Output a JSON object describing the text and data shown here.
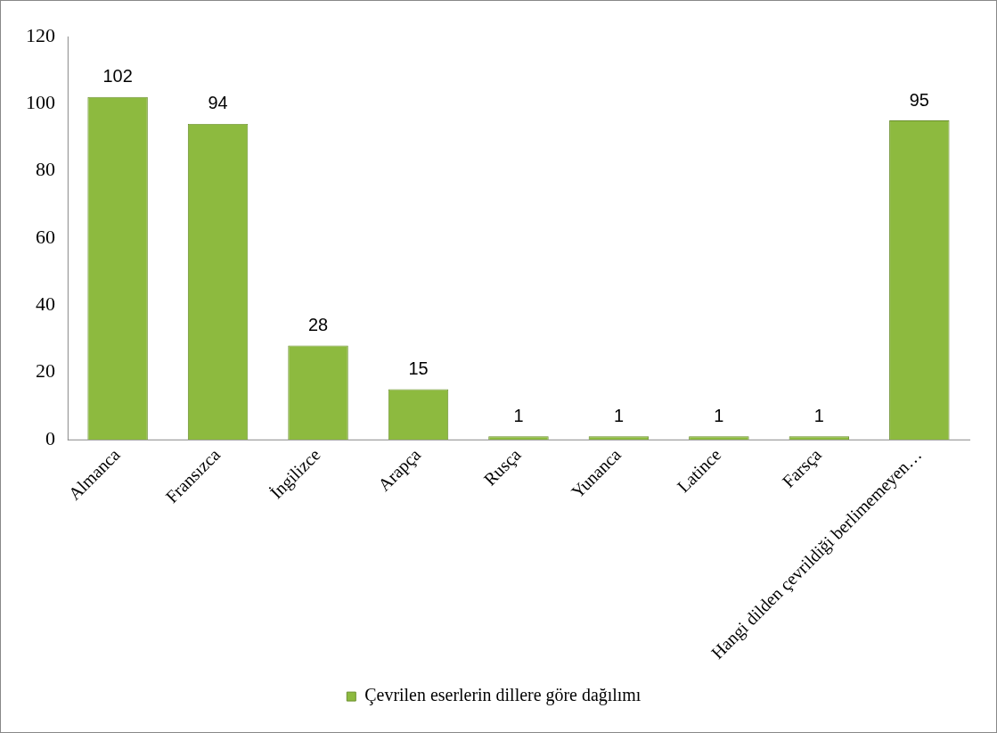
{
  "chart_data": {
    "type": "bar",
    "categories": [
      "Almanca",
      "Fransızca",
      "İngilizce",
      "Arapça",
      "Rusça",
      "Yunanca",
      "Latince",
      "Farsça",
      "Hangi dilden çevrildiği berlimemeyen…"
    ],
    "series": [
      {
        "name": "Çevrilen eserlerin dillere göre dağılımı",
        "color": "#8dba3f",
        "values": [
          102,
          94,
          28,
          15,
          1,
          1,
          1,
          1,
          95
        ]
      }
    ],
    "ylim": [
      0,
      120
    ],
    "yticks": [
      0,
      20,
      40,
      60,
      80,
      100,
      120
    ],
    "grid": false,
    "legend": "bottom",
    "data_labels": true
  }
}
